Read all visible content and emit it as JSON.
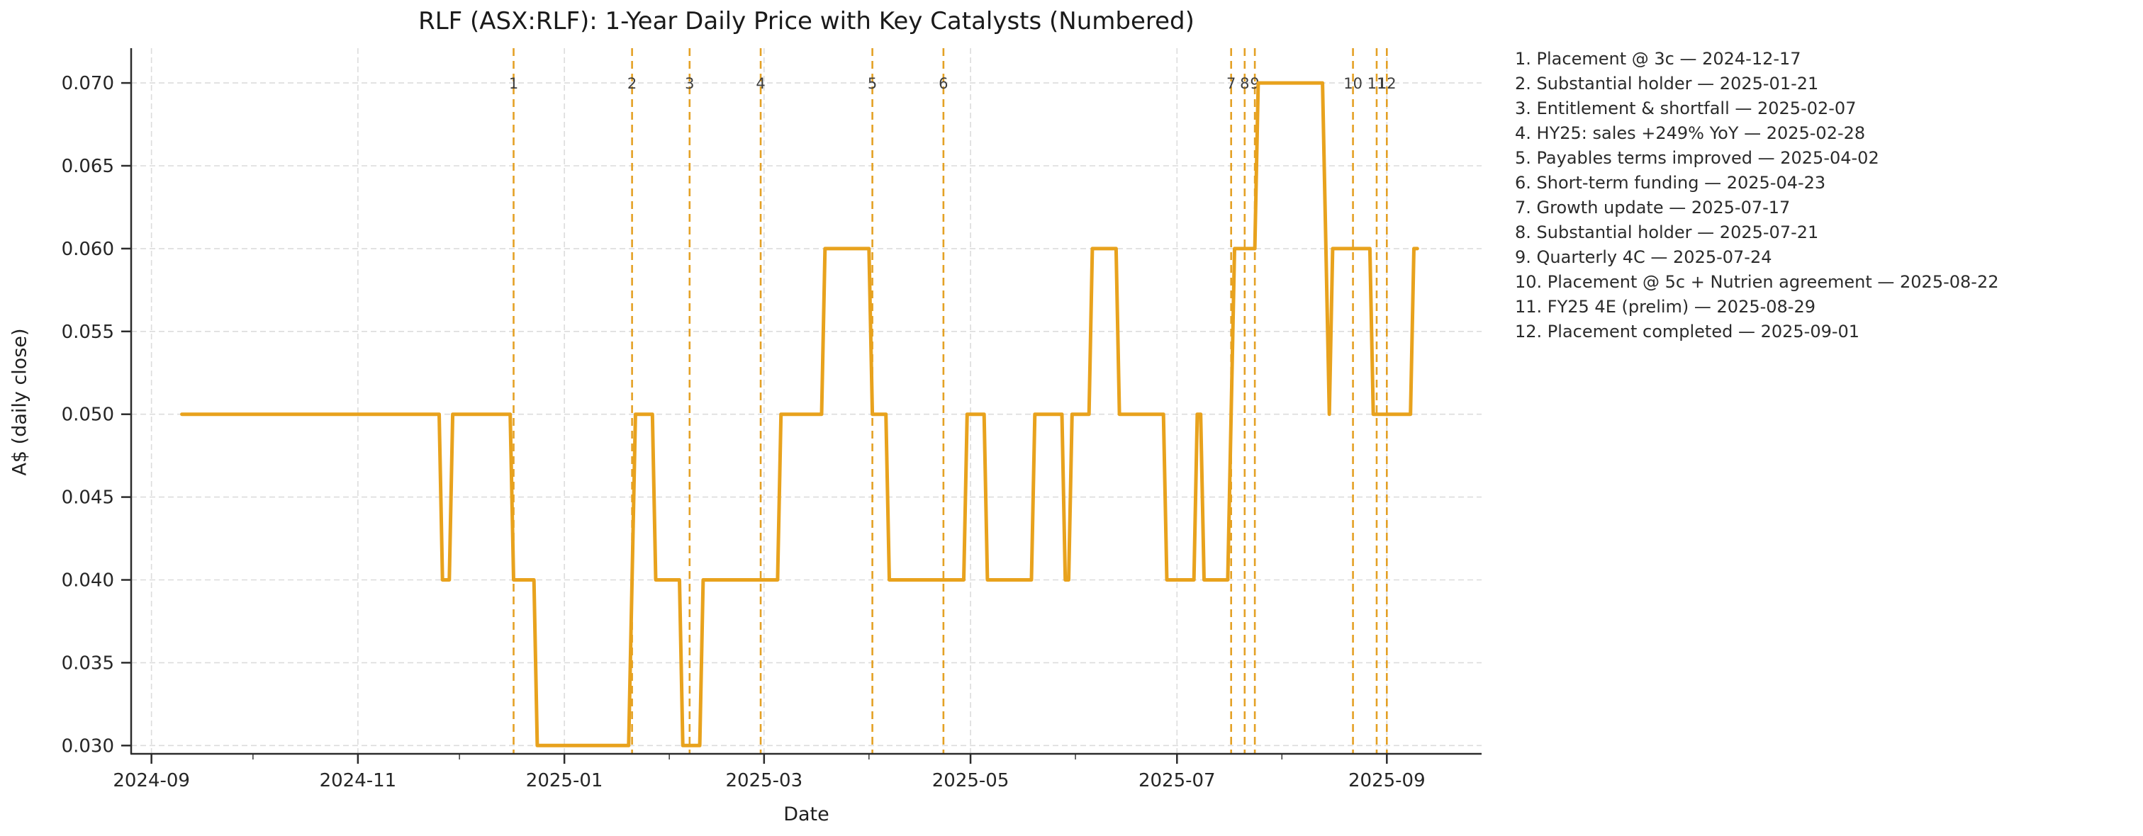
{
  "accent_color": "#E8A21D",
  "chart_data": {
    "type": "line",
    "title": "RLF (ASX:RLF): 1-Year Daily Price with Key Catalysts (Numbered)",
    "xlabel": "Date",
    "ylabel": "A$ (daily close)",
    "grid": true,
    "legend_position": "outside-right",
    "xlim": [
      "2024-08-26",
      "2025-09-29"
    ],
    "ylim": [
      0.0295,
      0.0721
    ],
    "colors": {
      "price_line": "#E8A21D",
      "event_line": "#E39C1A",
      "gridline": "#DCDCDC",
      "spine": "#2b2b2b",
      "tick_label": "#262626",
      "event_number": "#3d3d3d"
    },
    "y_ticks": [
      {
        "value": 0.03,
        "label": "0.030"
      },
      {
        "value": 0.035,
        "label": "0.035"
      },
      {
        "value": 0.04,
        "label": "0.040"
      },
      {
        "value": 0.045,
        "label": "0.045"
      },
      {
        "value": 0.05,
        "label": "0.050"
      },
      {
        "value": 0.055,
        "label": "0.055"
      },
      {
        "value": 0.06,
        "label": "0.060"
      },
      {
        "value": 0.065,
        "label": "0.065"
      },
      {
        "value": 0.07,
        "label": "0.070"
      }
    ],
    "x_ticks": [
      {
        "date": "2024-09-01",
        "label": "2024-09"
      },
      {
        "date": "2024-11-01",
        "label": "2024-11"
      },
      {
        "date": "2025-01-01",
        "label": "2025-01"
      },
      {
        "date": "2025-03-01",
        "label": "2025-03"
      },
      {
        "date": "2025-05-01",
        "label": "2025-05"
      },
      {
        "date": "2025-07-01",
        "label": "2025-07"
      },
      {
        "date": "2025-09-01",
        "label": "2025-09"
      }
    ],
    "x_minor_ticks": [
      "2024-10-01",
      "2024-12-01",
      "2025-02-01",
      "2025-04-01",
      "2025-06-01",
      "2025-08-01"
    ],
    "series": [
      {
        "name": "RLF daily close",
        "segments": [
          {
            "from": "2024-09-10",
            "to": "2024-11-25",
            "v": 0.05
          },
          {
            "from": "2024-11-26",
            "to": "2024-11-28",
            "v": 0.04
          },
          {
            "from": "2024-11-29",
            "to": "2024-12-16",
            "v": 0.05
          },
          {
            "from": "2024-12-17",
            "to": "2024-12-23",
            "v": 0.04
          },
          {
            "from": "2024-12-24",
            "to": "2025-01-20",
            "v": 0.03
          },
          {
            "from": "2025-01-22",
            "to": "2025-01-27",
            "v": 0.05
          },
          {
            "from": "2025-01-28",
            "to": "2025-02-04",
            "v": 0.04
          },
          {
            "from": "2025-02-05",
            "to": "2025-02-10",
            "v": 0.03
          },
          {
            "from": "2025-02-11",
            "to": "2025-03-05",
            "v": 0.04
          },
          {
            "from": "2025-03-06",
            "to": "2025-03-18",
            "v": 0.05
          },
          {
            "from": "2025-03-19",
            "to": "2025-04-01",
            "v": 0.06
          },
          {
            "from": "2025-04-02",
            "to": "2025-04-06",
            "v": 0.05
          },
          {
            "from": "2025-04-07",
            "to": "2025-04-29",
            "v": 0.04
          },
          {
            "from": "2025-04-30",
            "to": "2025-05-05",
            "v": 0.05
          },
          {
            "from": "2025-05-06",
            "to": "2025-05-19",
            "v": 0.04
          },
          {
            "from": "2025-05-20",
            "to": "2025-05-28",
            "v": 0.05
          },
          {
            "from": "2025-05-29",
            "to": "2025-05-30",
            "v": 0.04
          },
          {
            "from": "2025-05-31",
            "to": "2025-06-05",
            "v": 0.05
          },
          {
            "from": "2025-06-06",
            "to": "2025-06-13",
            "v": 0.06
          },
          {
            "from": "2025-06-14",
            "to": "2025-06-27",
            "v": 0.05
          },
          {
            "from": "2025-06-28",
            "to": "2025-07-06",
            "v": 0.04
          },
          {
            "from": "2025-07-07",
            "to": "2025-07-08",
            "v": 0.05
          },
          {
            "from": "2025-07-09",
            "to": "2025-07-16",
            "v": 0.04
          },
          {
            "from": "2025-07-18",
            "to": "2025-07-24",
            "v": 0.06
          },
          {
            "from": "2025-07-25",
            "to": "2025-08-13",
            "v": 0.07
          },
          {
            "from": "2025-08-15",
            "to": "2025-08-15",
            "v": 0.05
          },
          {
            "from": "2025-08-16",
            "to": "2025-08-27",
            "v": 0.06
          },
          {
            "from": "2025-08-28",
            "to": "2025-09-08",
            "v": 0.05
          },
          {
            "from": "2025-09-09",
            "to": "2025-09-10",
            "v": 0.06
          }
        ]
      }
    ],
    "events": [
      {
        "n": "1",
        "label": "Placement @ 3c",
        "date": "2024-12-17"
      },
      {
        "n": "2",
        "label": "Substantial holder",
        "date": "2025-01-21"
      },
      {
        "n": "3",
        "label": "Entitlement & shortfall",
        "date": "2025-02-07"
      },
      {
        "n": "4",
        "label": "HY25: sales +249% YoY",
        "date": "2025-02-28"
      },
      {
        "n": "5",
        "label": "Payables terms improved",
        "date": "2025-04-02"
      },
      {
        "n": "6",
        "label": "Short-term funding",
        "date": "2025-04-23"
      },
      {
        "n": "7",
        "label": "Growth update",
        "date": "2025-07-17"
      },
      {
        "n": "8",
        "label": "Substantial holder",
        "date": "2025-07-21"
      },
      {
        "n": "9",
        "label": "Quarterly 4C",
        "date": "2025-07-24"
      },
      {
        "n": "10",
        "label": "Placement @ 5c + Nutrien agreement",
        "date": "2025-08-22"
      },
      {
        "n": "11",
        "label": "FY25 4E (prelim)",
        "date": "2025-08-29"
      },
      {
        "n": "12",
        "label": "Placement completed",
        "date": "2025-09-01"
      }
    ],
    "legend_separator": " — "
  }
}
